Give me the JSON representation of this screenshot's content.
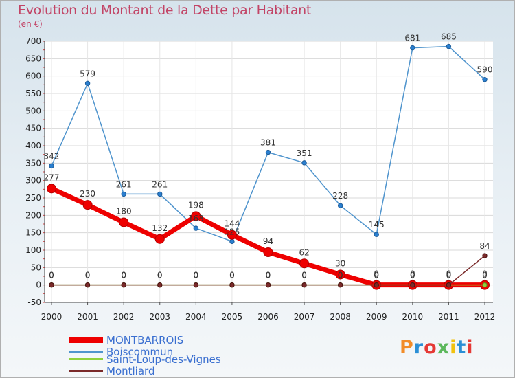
{
  "header": {
    "title": "Evolution du Montant de la Dette par Habitant",
    "unit": "(en €)"
  },
  "logo": {
    "text": "Proxiti",
    "colors": [
      "#f28c28",
      "#2a8fd6",
      "#e53935",
      "#5cb85c",
      "#f2c20f",
      "#2a8fd6",
      "#e53935"
    ]
  },
  "chart_data": {
    "type": "line",
    "title": "Evolution du Montant de la Dette par Habitant",
    "subtitle": "(en €)",
    "xlabel": "",
    "ylabel": "",
    "x": [
      "2000",
      "2001",
      "2002",
      "2003",
      "2004",
      "2005",
      "2006",
      "2007",
      "2008",
      "2009",
      "2010",
      "2011",
      "2012"
    ],
    "ylim": [
      -50,
      700
    ],
    "yticks": [
      -50,
      0,
      50,
      100,
      150,
      200,
      250,
      300,
      350,
      400,
      450,
      500,
      550,
      600,
      650,
      700
    ],
    "grid": true,
    "legend_position": "bottom-left",
    "series": [
      {
        "name": "MONTBARROIS",
        "color": "#ee0000",
        "values": [
          277,
          230,
          180,
          132,
          198,
          144,
          94,
          62,
          30,
          0,
          0,
          0,
          0
        ],
        "labels": [
          "277",
          "230",
          "180",
          "132",
          "198",
          "144",
          "94",
          "62",
          "30",
          "0",
          "0",
          "0",
          "0"
        ]
      },
      {
        "name": "Boiscommun",
        "color": "#4f94cd",
        "values": [
          342,
          579,
          261,
          261,
          163,
          125,
          381,
          351,
          228,
          145,
          681,
          685,
          590
        ],
        "labels": [
          "342",
          "579",
          "261",
          "261",
          "163",
          "125",
          "381",
          "351",
          "228",
          "145",
          "681",
          "685",
          "590"
        ]
      },
      {
        "name": "Saint-Loup-des-Vignes",
        "color": "#8fd13c",
        "values": [
          0,
          0,
          0,
          0,
          0,
          0,
          0,
          0,
          0,
          0,
          0,
          0,
          0
        ],
        "labels": [
          "0",
          "0",
          "0",
          "0",
          "0",
          "0",
          "0",
          "0",
          "0",
          "0",
          "0",
          "0",
          "0"
        ]
      },
      {
        "name": "Montliard",
        "color": "#7a2a2a",
        "values": [
          0,
          0,
          0,
          0,
          0,
          0,
          0,
          0,
          0,
          0,
          0,
          0,
          84
        ],
        "labels": [
          "0",
          "0",
          "0",
          "0",
          "0",
          "0",
          "0",
          "0",
          "0",
          "0",
          "0",
          "0",
          "84"
        ]
      }
    ]
  }
}
